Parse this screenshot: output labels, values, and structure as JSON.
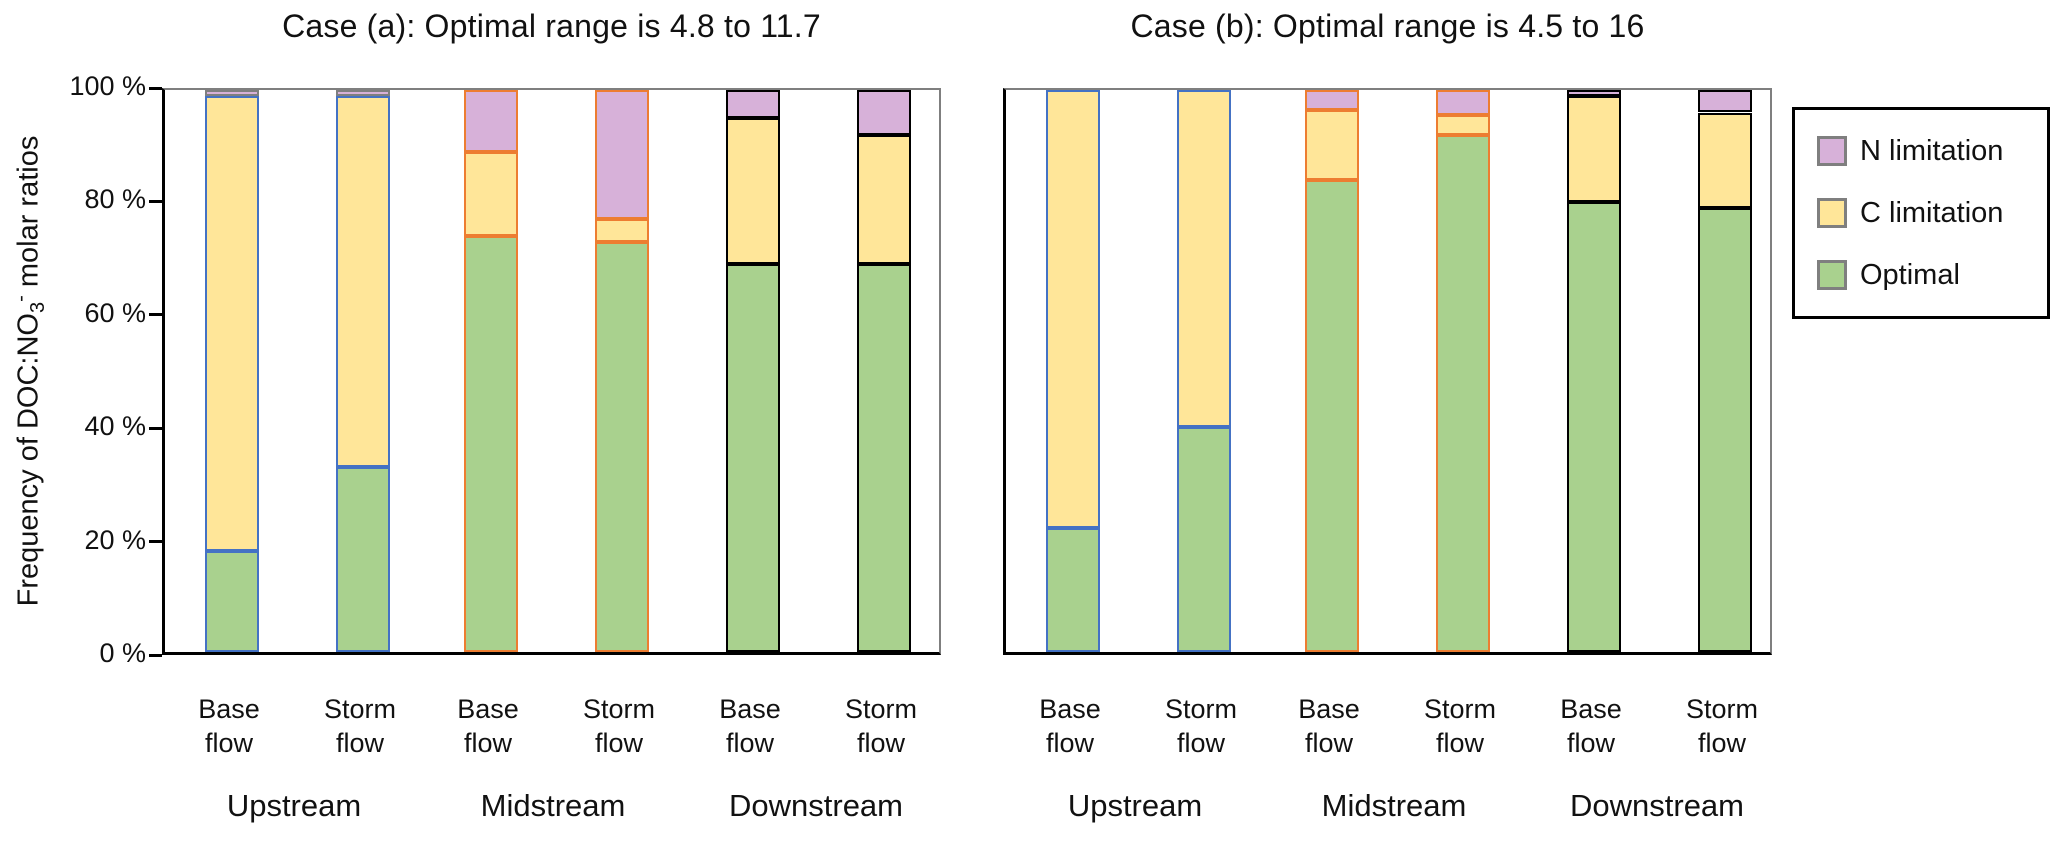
{
  "y_axis": {
    "title_prefix": "Frequency of DOC:NO",
    "title_sub": "3",
    "title_sup": "-",
    "title_suffix": " molar ratios",
    "tick_labels": [
      "100 %",
      "80 %",
      "60 %",
      "40 %",
      "20 %",
      "0 %"
    ]
  },
  "legend": {
    "items": [
      {
        "label": "N limitation",
        "color": "#D7B1D9"
      },
      {
        "label": "C limitation",
        "color": "#FFE699"
      },
      {
        "label": "Optimal",
        "color": "#A9D18E"
      }
    ]
  },
  "colors": {
    "optimal_fill": "#A9D18E",
    "c_limitation_fill": "#FFE699",
    "n_limitation_fill": "#D7B1D9",
    "upstream_border": "#4472C4",
    "midstream_border": "#ED7D31",
    "downstream_border": "#000000",
    "cap_border_gray": "#7F7F7F"
  },
  "chart_data": [
    {
      "type": "bar",
      "stacked": true,
      "title": "Case (a): Optimal range is 4.8 to 11.7",
      "ylabel": "Frequency of DOC:NO3- molar ratios",
      "ylim": [
        0,
        100
      ],
      "y_ticks_percent": [
        0,
        20,
        40,
        60,
        80,
        100
      ],
      "grid": false,
      "groups": [
        "Upstream",
        "Midstream",
        "Downstream"
      ],
      "categories": [
        "Base flow",
        "Storm flow",
        "Base flow",
        "Storm flow",
        "Base flow",
        "Storm flow"
      ],
      "series": [
        {
          "name": "Optimal",
          "values": [
            18,
            33,
            74,
            73,
            69,
            69
          ]
        },
        {
          "name": "C limitation",
          "values": [
            81,
            66,
            15,
            4,
            26,
            23
          ]
        },
        {
          "name": "N limitation",
          "values": [
            1,
            1,
            11,
            23,
            5,
            8
          ]
        }
      ],
      "bar_border_colors": [
        "#4472C4",
        "#4472C4",
        "#ED7D31",
        "#ED7D31",
        "#000000",
        "#000000"
      ],
      "n_segment_border_overrides": [
        "#7F7F7F",
        "#7F7F7F",
        null,
        null,
        null,
        null
      ]
    },
    {
      "type": "bar",
      "stacked": true,
      "title": "Case (b): Optimal range is 4.5 to 16",
      "ylabel": "Frequency of DOC:NO3- molar ratios",
      "ylim": [
        0,
        100
      ],
      "y_ticks_percent": [
        0,
        20,
        40,
        60,
        80,
        100
      ],
      "grid": false,
      "groups": [
        "Upstream",
        "Midstream",
        "Downstream"
      ],
      "categories": [
        "Base flow",
        "Storm flow",
        "Base flow",
        "Storm flow",
        "Base flow",
        "Storm flow"
      ],
      "series": [
        {
          "name": "Optimal",
          "values": [
            22,
            40,
            84,
            92,
            80,
            79
          ]
        },
        {
          "name": "C limitation",
          "values": [
            78,
            60,
            12.5,
            3.5,
            19,
            17
          ]
        },
        {
          "name": "N limitation",
          "values": [
            0,
            0,
            3.5,
            4.5,
            1,
            4
          ]
        }
      ],
      "bar_border_colors": [
        "#4472C4",
        "#4472C4",
        "#ED7D31",
        "#ED7D31",
        "#000000",
        "#000000"
      ],
      "n_segment_border_overrides": [
        null,
        null,
        null,
        null,
        null,
        null
      ]
    }
  ]
}
